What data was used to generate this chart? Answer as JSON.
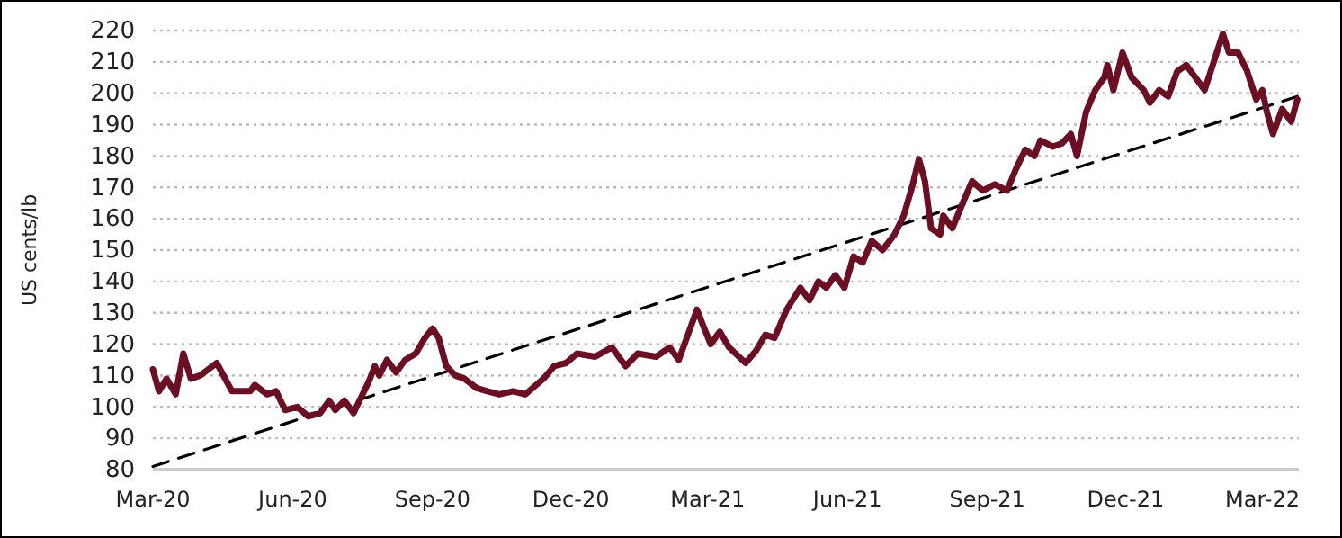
{
  "chart_data": {
    "type": "line",
    "ylabel": "US cents/lb",
    "grid": "y",
    "xlim": [
      "2020-03-01",
      "2022-03-25"
    ],
    "xticks": [
      {
        "value": "2020-03-01",
        "label": "Mar-20"
      },
      {
        "value": "2020-06-01",
        "label": "Jun-20"
      },
      {
        "value": "2020-09-01",
        "label": "Sep-20"
      },
      {
        "value": "2020-12-01",
        "label": "Dec-20"
      },
      {
        "value": "2021-03-01",
        "label": "Mar-21"
      },
      {
        "value": "2021-06-01",
        "label": "Jun-21"
      },
      {
        "value": "2021-09-01",
        "label": "Sep-21"
      },
      {
        "value": "2021-12-01",
        "label": "Dec-21"
      },
      {
        "value": "2022-03-01",
        "label": "Mar-22"
      }
    ],
    "ylim": [
      80,
      220
    ],
    "yticks": [
      80,
      90,
      100,
      110,
      120,
      130,
      140,
      150,
      160,
      170,
      180,
      190,
      200,
      210,
      220
    ],
    "series": [
      {
        "type": "line",
        "color": "#6b0f24",
        "line_style": "solid",
        "x": [
          "2020-03-01",
          "2020-03-05",
          "2020-03-10",
          "2020-03-16",
          "2020-03-21",
          "2020-03-26",
          "2020-04-01",
          "2020-04-12",
          "2020-04-22",
          "2020-05-04",
          "2020-05-07",
          "2020-05-15",
          "2020-05-21",
          "2020-05-27",
          "2020-06-04",
          "2020-06-11",
          "2020-06-19",
          "2020-06-25",
          "2020-06-29",
          "2020-07-05",
          "2020-07-11",
          "2020-07-17",
          "2020-07-21",
          "2020-07-25",
          "2020-07-28",
          "2020-08-02",
          "2020-08-08",
          "2020-08-14",
          "2020-08-21",
          "2020-08-27",
          "2020-09-01",
          "2020-09-05",
          "2020-09-10",
          "2020-09-16",
          "2020-09-22",
          "2020-09-30",
          "2020-10-07",
          "2020-10-15",
          "2020-10-24",
          "2020-11-01",
          "2020-11-13",
          "2020-11-20",
          "2020-11-28",
          "2020-12-05",
          "2020-12-17",
          "2020-12-28",
          "2021-01-06",
          "2021-01-14",
          "2021-01-26",
          "2021-02-04",
          "2021-02-10",
          "2021-02-16",
          "2021-02-22",
          "2021-02-26",
          "2021-03-03",
          "2021-03-09",
          "2021-03-15",
          "2021-03-26",
          "2021-04-02",
          "2021-04-08",
          "2021-04-14",
          "2021-04-22",
          "2021-05-01",
          "2021-05-07",
          "2021-05-13",
          "2021-05-18",
          "2021-05-24",
          "2021-05-30",
          "2021-06-05",
          "2021-06-11",
          "2021-06-17",
          "2021-06-24",
          "2021-07-02",
          "2021-07-08",
          "2021-07-14",
          "2021-07-18",
          "2021-07-22",
          "2021-07-26",
          "2021-08-01",
          "2021-08-03",
          "2021-08-09",
          "2021-08-15",
          "2021-08-22",
          "2021-08-29",
          "2021-09-06",
          "2021-09-14",
          "2021-09-20",
          "2021-09-26",
          "2021-10-02",
          "2021-10-06",
          "2021-10-14",
          "2021-10-20",
          "2021-10-26",
          "2021-10-30",
          "2021-11-05",
          "2021-11-11",
          "2021-11-17",
          "2021-11-19",
          "2021-11-23",
          "2021-11-29",
          "2021-12-05",
          "2021-12-13",
          "2021-12-17",
          "2021-12-23",
          "2021-12-29",
          "2022-01-04",
          "2022-01-10",
          "2022-01-16",
          "2022-01-22",
          "2022-01-28",
          "2022-02-03",
          "2022-02-07",
          "2022-02-13",
          "2022-02-19",
          "2022-02-25",
          "2022-03-01",
          "2022-03-04",
          "2022-03-08",
          "2022-03-14",
          "2022-03-20",
          "2022-03-24"
        ],
        "values": [
          112,
          105,
          109,
          104,
          117,
          109,
          110,
          114,
          105,
          105,
          107,
          104,
          105,
          99,
          100,
          97,
          98,
          102,
          99,
          102,
          98,
          104,
          108,
          113,
          110,
          115,
          111,
          115,
          117,
          122,
          125,
          122,
          113,
          110,
          109,
          106,
          105,
          104,
          105,
          104,
          109,
          113,
          114,
          117,
          116,
          119,
          113,
          117,
          116,
          119,
          115,
          123,
          131,
          126,
          120,
          124,
          119,
          114,
          118,
          123,
          122,
          131,
          138,
          134,
          140,
          138,
          142,
          138,
          148,
          146,
          153,
          150,
          155,
          161,
          171,
          179,
          172,
          157,
          155,
          161,
          157,
          164,
          172,
          169,
          171,
          169,
          176,
          182,
          180,
          185,
          183,
          184,
          187,
          180,
          194,
          201,
          205,
          209,
          201,
          213,
          205,
          201,
          197,
          201,
          199,
          207,
          209,
          205,
          201,
          210,
          219,
          213,
          213,
          207,
          198,
          201,
          194,
          187,
          195,
          191,
          198
        ]
      },
      {
        "type": "line",
        "color": "#000000",
        "line_style": "dashed",
        "x": [
          "2020-03-01",
          "2022-03-24"
        ],
        "values": [
          81,
          199
        ]
      }
    ]
  }
}
